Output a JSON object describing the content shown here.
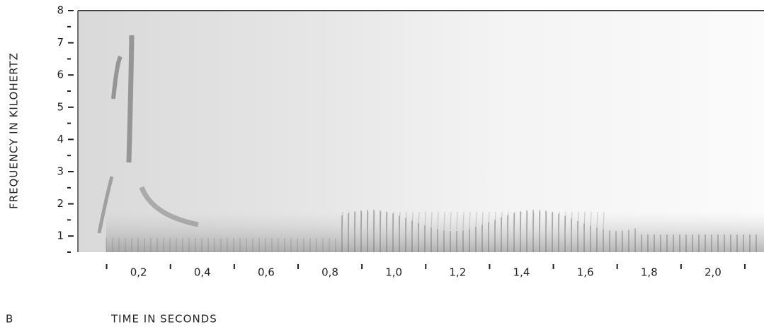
{
  "chart_data": {
    "type": "spectrogram",
    "panel_label": "B",
    "x_label": "TIME IN SECONDS",
    "y_label": "FREQUENCY IN KILOHERTZ",
    "xlim": [
      0.01,
      2.16
    ],
    "ylim": [
      0.5,
      8
    ],
    "xticks": [
      {
        "value": 0.2,
        "label": "0,2"
      },
      {
        "value": 0.4,
        "label": "0,4"
      },
      {
        "value": 0.6,
        "label": "0,6"
      },
      {
        "value": 0.8,
        "label": "0,8"
      },
      {
        "value": 1.0,
        "label": "1,0"
      },
      {
        "value": 1.2,
        "label": "1,2"
      },
      {
        "value": 1.4,
        "label": "1,4"
      },
      {
        "value": 1.6,
        "label": "1,6"
      },
      {
        "value": 1.8,
        "label": "1,8"
      },
      {
        "value": 2.0,
        "label": "2,0"
      }
    ],
    "xminorticks": [
      0.1,
      0.3,
      0.5,
      0.7,
      0.9,
      1.1,
      1.3,
      1.5,
      1.7,
      1.9,
      2.1
    ],
    "yticks": [
      1,
      2,
      3,
      4,
      5,
      6,
      7,
      8
    ],
    "yminorticks": [
      0.5,
      1.5,
      2.5,
      3.5,
      4.5,
      5.5,
      6.5,
      7.5
    ]
  }
}
